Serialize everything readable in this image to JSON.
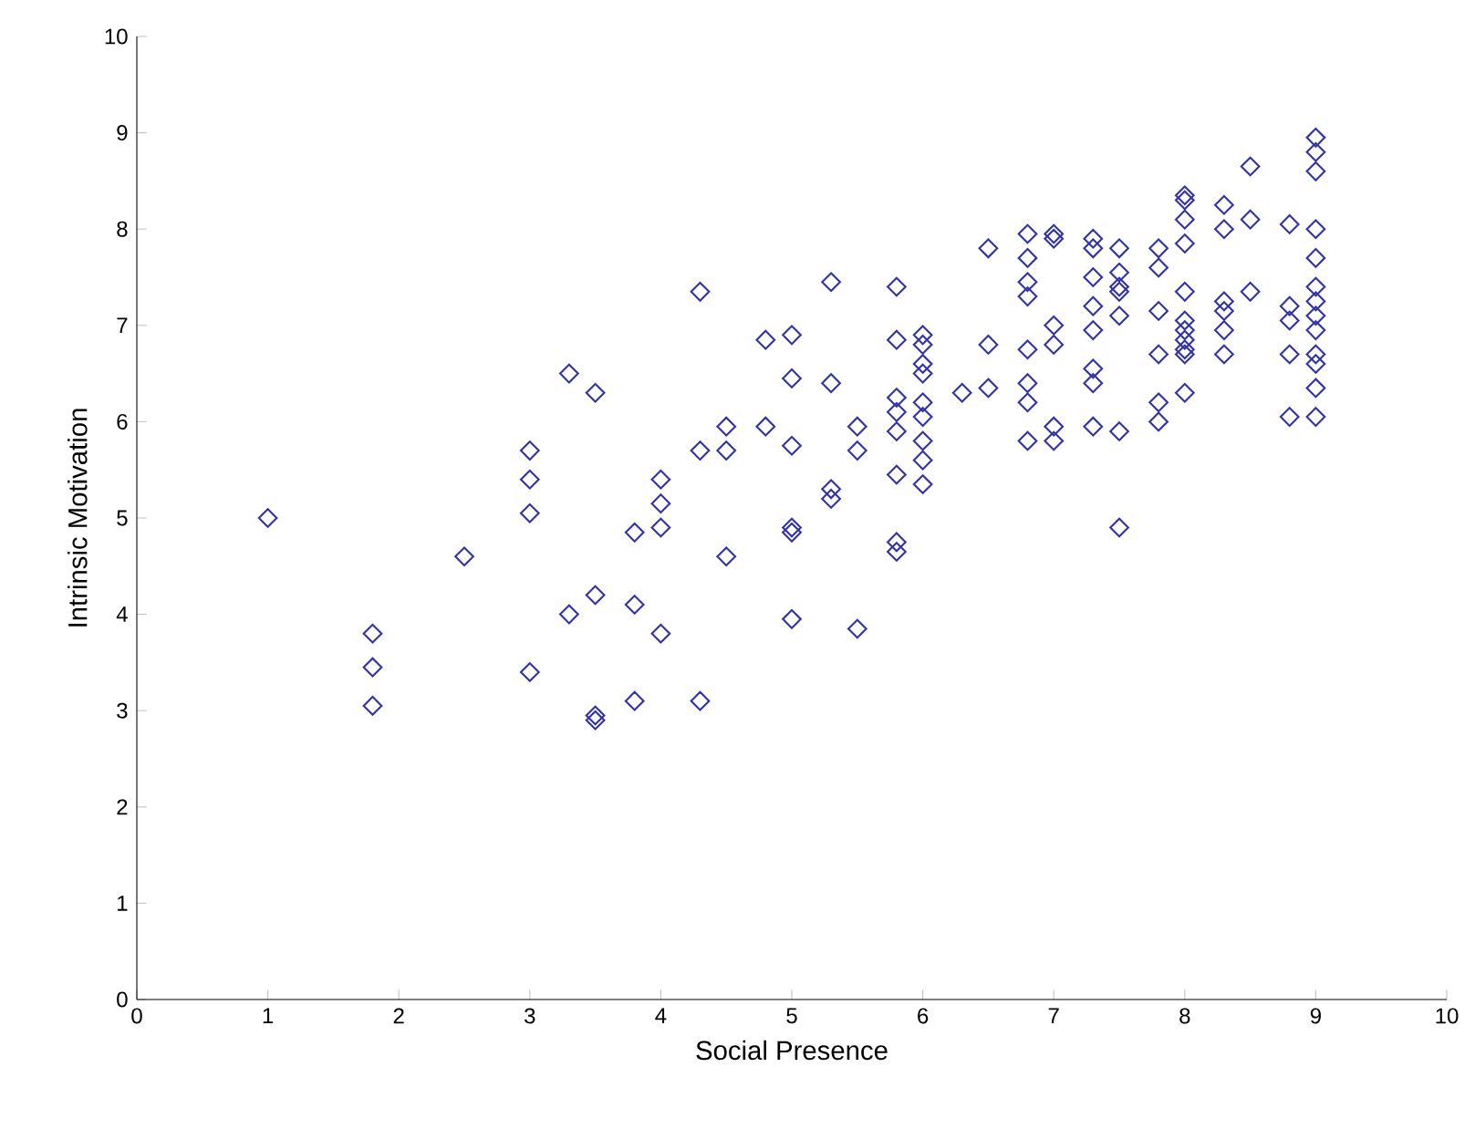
{
  "chart_data": {
    "type": "scatter",
    "xlabel": "Social Presence",
    "ylabel": "Intrinsic Motivation",
    "xlim": [
      0,
      10
    ],
    "ylim": [
      0,
      10
    ],
    "xticks": [
      0,
      1,
      2,
      3,
      4,
      5,
      6,
      7,
      8,
      9,
      10
    ],
    "yticks": [
      0,
      1,
      2,
      3,
      4,
      5,
      6,
      7,
      8,
      9,
      10
    ],
    "grid": false,
    "marker": "diamond",
    "series": [
      {
        "color": "#3333aa",
        "x": [
          1,
          1.8,
          1.8,
          1.8,
          2.5,
          3,
          3,
          3,
          3,
          3.3,
          3.3,
          3.5,
          3.5,
          3.5,
          3.5,
          3.8,
          3.8,
          3.8,
          4,
          4,
          4,
          4,
          4.3,
          4.3,
          4.3,
          4.5,
          4.5,
          4.5,
          4.8,
          4.8,
          5,
          5,
          5,
          5,
          5,
          5,
          5.3,
          5.3,
          5.3,
          5.3,
          5.5,
          5.5,
          5.5,
          5.8,
          5.8,
          5.8,
          5.8,
          5.8,
          5.8,
          5.8,
          5.8,
          6,
          6,
          6,
          6,
          6,
          6,
          6,
          6,
          6,
          6.3,
          6.5,
          6.5,
          6.5,
          6.8,
          6.8,
          6.8,
          6.8,
          6.8,
          6.8,
          6.8,
          6.8,
          7,
          7,
          7,
          7,
          7,
          7,
          7.3,
          7.3,
          7.3,
          7.3,
          7.3,
          7.3,
          7.3,
          7.3,
          7.5,
          7.5,
          7.5,
          7.5,
          7.5,
          7.5,
          7.5,
          7.8,
          7.8,
          7.8,
          7.8,
          7.8,
          7.8,
          8,
          8,
          8,
          8,
          8,
          8,
          8,
          8,
          8,
          8,
          8,
          8.3,
          8.3,
          8.3,
          8.3,
          8.3,
          8.3,
          8.5,
          8.5,
          8.5,
          8.8,
          8.8,
          8.8,
          8.8,
          8.8,
          9,
          9,
          9,
          9,
          9,
          9,
          9,
          9,
          9,
          9,
          9,
          9,
          9
        ],
        "values": [
          5.0,
          3.8,
          3.45,
          3.05,
          4.6,
          5.7,
          5.4,
          5.05,
          3.4,
          6.5,
          4.0,
          6.3,
          4.2,
          2.95,
          2.9,
          4.85,
          4.1,
          3.1,
          5.4,
          5.15,
          4.9,
          3.8,
          7.35,
          5.7,
          3.1,
          5.95,
          5.7,
          4.6,
          6.85,
          5.95,
          6.9,
          6.45,
          5.75,
          4.9,
          4.85,
          3.95,
          7.45,
          6.4,
          5.3,
          5.2,
          5.95,
          5.7,
          3.85,
          7.4,
          6.85,
          6.25,
          6.1,
          5.9,
          5.45,
          4.75,
          4.65,
          6.9,
          6.8,
          6.6,
          6.5,
          6.2,
          6.05,
          5.8,
          5.6,
          5.35,
          6.3,
          7.8,
          6.8,
          6.35,
          7.95,
          7.7,
          7.45,
          7.3,
          6.75,
          6.4,
          6.2,
          5.8,
          7.95,
          7.9,
          7.0,
          6.8,
          5.95,
          5.8,
          7.9,
          7.8,
          7.5,
          7.2,
          6.95,
          6.55,
          6.4,
          5.95,
          7.8,
          7.55,
          7.4,
          7.35,
          7.1,
          5.9,
          4.9,
          7.8,
          7.6,
          7.15,
          6.7,
          6.2,
          6.0,
          8.35,
          8.3,
          8.1,
          7.85,
          7.35,
          7.05,
          6.95,
          6.85,
          6.75,
          6.7,
          6.3,
          8.25,
          8.0,
          7.25,
          7.15,
          6.95,
          6.7,
          8.65,
          8.1,
          7.35,
          8.05,
          7.2,
          7.05,
          6.7,
          6.05,
          8.95,
          8.8,
          8.6,
          8.0,
          7.7,
          7.4,
          7.25,
          7.1,
          6.95,
          6.7,
          6.6,
          6.35,
          6.05
        ]
      }
    ]
  }
}
